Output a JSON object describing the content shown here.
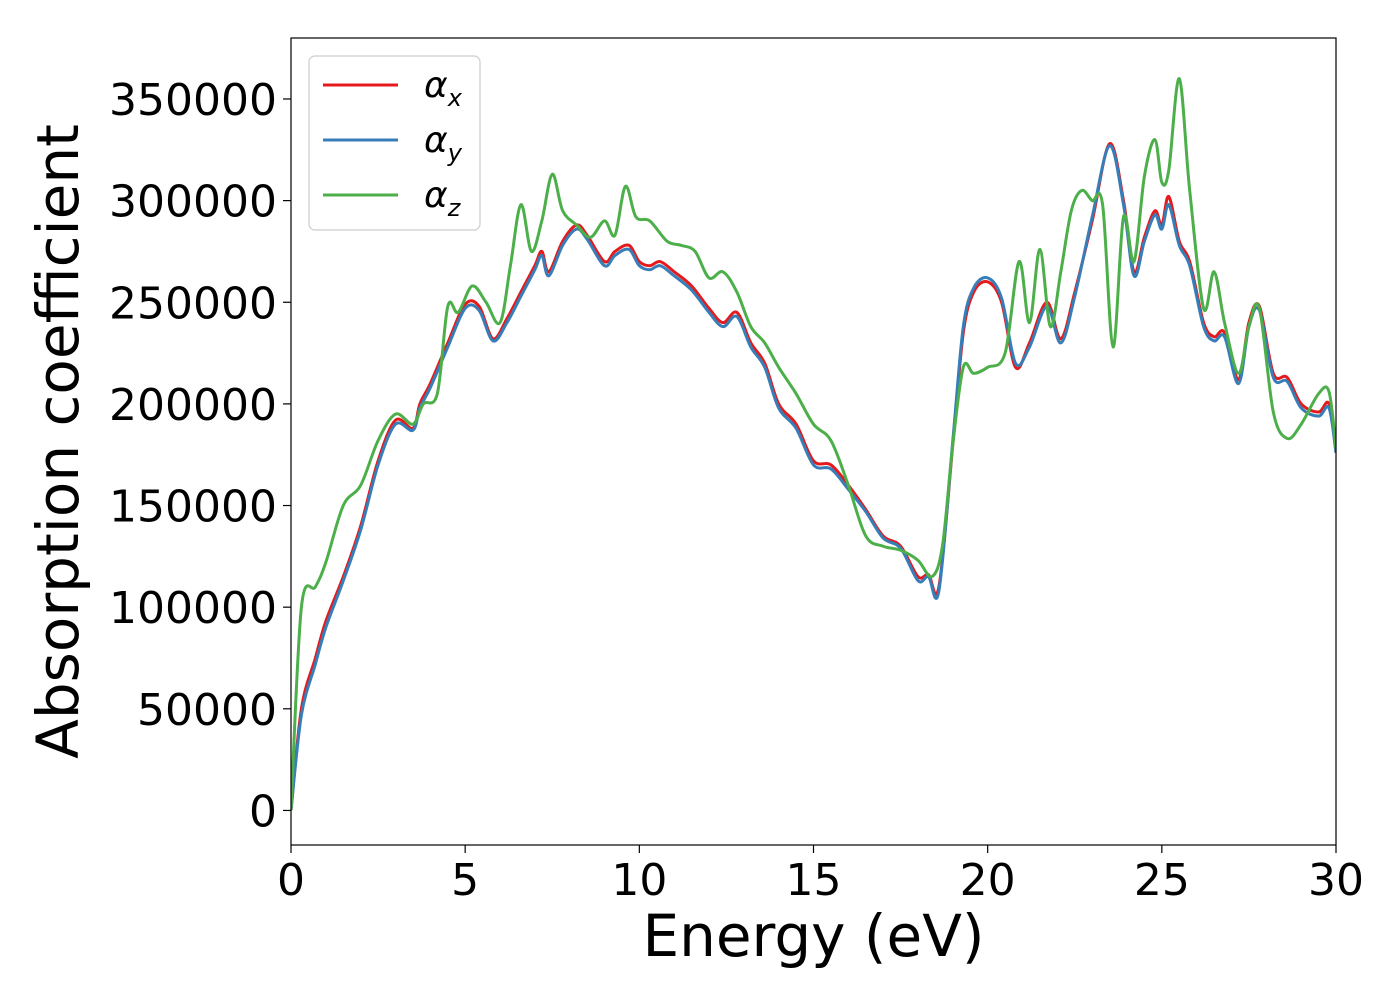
{
  "chart_data": {
    "type": "line",
    "xlabel": "Energy (eV)",
    "ylabel": "Absorption coefficient",
    "xlim": [
      0,
      30
    ],
    "ylim": [
      -17000,
      380000
    ],
    "xticks": [
      0,
      5,
      10,
      15,
      20,
      25,
      30
    ],
    "xtick_labels": [
      "0",
      "5",
      "10",
      "15",
      "20",
      "25",
      "30"
    ],
    "yticks": [
      0,
      50000,
      100000,
      150000,
      200000,
      250000,
      300000,
      350000
    ],
    "ytick_labels": [
      "0",
      "50000",
      "100000",
      "150000",
      "200000",
      "250000",
      "300000",
      "350000"
    ],
    "grid": false,
    "legend_position": "top-left",
    "series": [
      {
        "name": "α_x",
        "label_main": "α",
        "label_sub": "x",
        "color": "#e41a1c",
        "x": [
          0,
          0.3,
          0.7,
          1.0,
          1.5,
          2.0,
          2.5,
          3.0,
          3.5,
          3.7,
          4.0,
          4.5,
          5.0,
          5.4,
          5.8,
          6.2,
          6.6,
          7.0,
          7.2,
          7.4,
          7.8,
          8.2,
          8.5,
          9.0,
          9.3,
          9.7,
          10.0,
          10.3,
          10.6,
          11.0,
          11.5,
          12.0,
          12.4,
          12.8,
          13.2,
          13.6,
          14.0,
          14.5,
          15.0,
          15.5,
          16.0,
          16.5,
          17.0,
          17.5,
          18.0,
          18.3,
          18.6,
          19.0,
          19.3,
          19.6,
          20.0,
          20.4,
          20.8,
          21.2,
          21.7,
          22.1,
          22.5,
          23.0,
          23.5,
          23.9,
          24.2,
          24.5,
          24.8,
          25.0,
          25.2,
          25.5,
          25.8,
          26.2,
          26.5,
          26.8,
          27.2,
          27.5,
          27.8,
          28.2,
          28.6,
          29.0,
          29.5,
          29.8,
          30.0
        ],
        "y": [
          0,
          50000,
          75000,
          93000,
          115000,
          140000,
          172000,
          192000,
          188000,
          200000,
          210000,
          230000,
          249000,
          248000,
          232000,
          242000,
          255000,
          268000,
          275000,
          265000,
          280000,
          288000,
          283000,
          270000,
          275000,
          278000,
          270000,
          268000,
          270000,
          265000,
          258000,
          247000,
          240000,
          245000,
          230000,
          220000,
          200000,
          190000,
          172000,
          170000,
          160000,
          148000,
          135000,
          130000,
          115000,
          116000,
          110000,
          180000,
          235000,
          255000,
          260000,
          250000,
          218000,
          230000,
          250000,
          232000,
          255000,
          290000,
          328000,
          300000,
          265000,
          282000,
          295000,
          288000,
          302000,
          280000,
          270000,
          240000,
          233000,
          235000,
          212000,
          240000,
          248000,
          215000,
          213000,
          200000,
          196000,
          200000,
          176000
        ]
      },
      {
        "name": "α_y",
        "label_main": "α",
        "label_sub": "y",
        "color": "#377eb8",
        "x": [
          0,
          0.3,
          0.7,
          1.0,
          1.5,
          2.0,
          2.5,
          3.0,
          3.5,
          3.7,
          4.0,
          4.5,
          5.0,
          5.4,
          5.8,
          6.2,
          6.6,
          7.0,
          7.2,
          7.4,
          7.8,
          8.2,
          8.5,
          9.0,
          9.3,
          9.7,
          10.0,
          10.3,
          10.6,
          11.0,
          11.5,
          12.0,
          12.4,
          12.8,
          13.2,
          13.6,
          14.0,
          14.5,
          15.0,
          15.5,
          16.0,
          16.5,
          17.0,
          17.5,
          18.0,
          18.3,
          18.6,
          19.0,
          19.3,
          19.6,
          20.0,
          20.4,
          20.8,
          21.2,
          21.7,
          22.1,
          22.5,
          23.0,
          23.5,
          23.9,
          24.2,
          24.5,
          24.8,
          25.0,
          25.2,
          25.5,
          25.8,
          26.2,
          26.5,
          26.8,
          27.2,
          27.5,
          27.8,
          28.2,
          28.6,
          29.0,
          29.5,
          29.8,
          30.0
        ],
        "y": [
          0,
          47000,
          72000,
          90000,
          113000,
          138000,
          170000,
          190000,
          187000,
          198000,
          208000,
          228000,
          247000,
          246000,
          231000,
          240000,
          253000,
          266000,
          273000,
          263000,
          278000,
          286000,
          281000,
          268000,
          273000,
          276000,
          268000,
          266000,
          268000,
          263000,
          256000,
          245000,
          238000,
          243000,
          228000,
          218000,
          198000,
          188000,
          170000,
          168000,
          158000,
          147000,
          134000,
          129000,
          113000,
          115000,
          108000,
          182000,
          238000,
          257000,
          262000,
          252000,
          220000,
          228000,
          248000,
          230000,
          253000,
          292000,
          327000,
          298000,
          263000,
          280000,
          293000,
          286000,
          298000,
          278000,
          268000,
          238000,
          231000,
          233000,
          210000,
          238000,
          246000,
          213000,
          211000,
          198000,
          194000,
          198000,
          176000
        ]
      },
      {
        "name": "α_z",
        "label_main": "α",
        "label_sub": "z",
        "color": "#4daf4a",
        "x": [
          0,
          0.3,
          0.7,
          1.0,
          1.5,
          2.0,
          2.5,
          3.0,
          3.5,
          3.8,
          4.2,
          4.5,
          4.8,
          5.2,
          5.6,
          6.0,
          6.3,
          6.6,
          6.9,
          7.2,
          7.5,
          7.8,
          8.2,
          8.6,
          9.0,
          9.3,
          9.6,
          9.9,
          10.3,
          10.8,
          11.2,
          11.6,
          12.0,
          12.4,
          12.8,
          13.2,
          13.6,
          14.0,
          14.5,
          15.0,
          15.5,
          16.0,
          16.5,
          17.0,
          17.5,
          18.0,
          18.4,
          18.7,
          19.0,
          19.3,
          19.6,
          20.0,
          20.5,
          20.9,
          21.2,
          21.5,
          21.8,
          22.1,
          22.4,
          22.7,
          23.0,
          23.3,
          23.6,
          23.9,
          24.2,
          24.5,
          24.8,
          25.0,
          25.2,
          25.5,
          25.8,
          26.2,
          26.5,
          26.8,
          27.2,
          27.5,
          27.8,
          28.2,
          28.6,
          29.0,
          29.5,
          29.8,
          30.0
        ],
        "y": [
          0,
          100000,
          110000,
          122000,
          150000,
          160000,
          182000,
          195000,
          190000,
          200000,
          205000,
          248000,
          245000,
          258000,
          250000,
          240000,
          268000,
          298000,
          275000,
          290000,
          313000,
          295000,
          288000,
          282000,
          290000,
          283000,
          307000,
          292000,
          290000,
          280000,
          278000,
          275000,
          262000,
          265000,
          255000,
          238000,
          230000,
          218000,
          205000,
          190000,
          182000,
          160000,
          135000,
          130000,
          128000,
          123000,
          115000,
          130000,
          180000,
          218000,
          215000,
          218000,
          225000,
          270000,
          240000,
          276000,
          238000,
          265000,
          295000,
          305000,
          300000,
          298000,
          228000,
          292000,
          270000,
          312000,
          330000,
          309000,
          315000,
          360000,
          305000,
          247000,
          265000,
          240000,
          215000,
          238000,
          247000,
          196000,
          183000,
          190000,
          205000,
          206000,
          178000
        ]
      }
    ]
  }
}
